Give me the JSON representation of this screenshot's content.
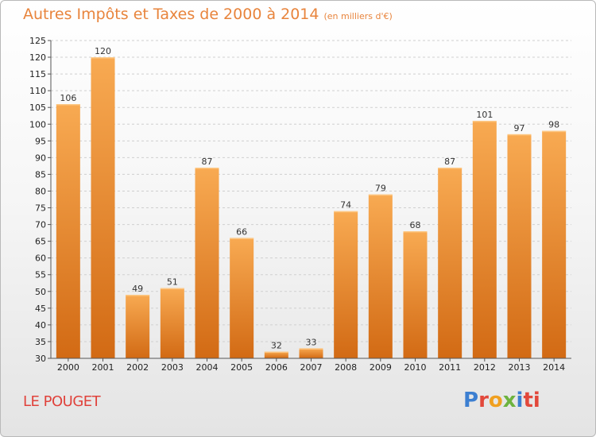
{
  "header": {
    "title": "Autres Impôts et Taxes de 2000 à 2014",
    "subtitle": "(en milliers d'€)"
  },
  "footer": {
    "place": "LE POUGET",
    "logo": [
      "P",
      "r",
      "o",
      "x",
      "i",
      "ti"
    ]
  },
  "colors": {
    "bar_light": "#f7a84e",
    "bar_dark": "#d9741e",
    "title": "#e8843c",
    "place": "#e0423b"
  },
  "chart_data": {
    "type": "bar",
    "categories": [
      "2000",
      "2001",
      "2002",
      "2003",
      "2004",
      "2005",
      "2006",
      "2007",
      "2008",
      "2009",
      "2010",
      "2011",
      "2012",
      "2013",
      "2014"
    ],
    "values": [
      106,
      120,
      49,
      51,
      87,
      66,
      32,
      33,
      74,
      79,
      68,
      87,
      101,
      97,
      98
    ],
    "ylim": [
      30,
      125
    ],
    "yticks": [
      30,
      35,
      40,
      45,
      50,
      55,
      60,
      65,
      70,
      75,
      80,
      85,
      90,
      95,
      100,
      105,
      110,
      115,
      120,
      125
    ],
    "grid": true,
    "legend": "none"
  }
}
